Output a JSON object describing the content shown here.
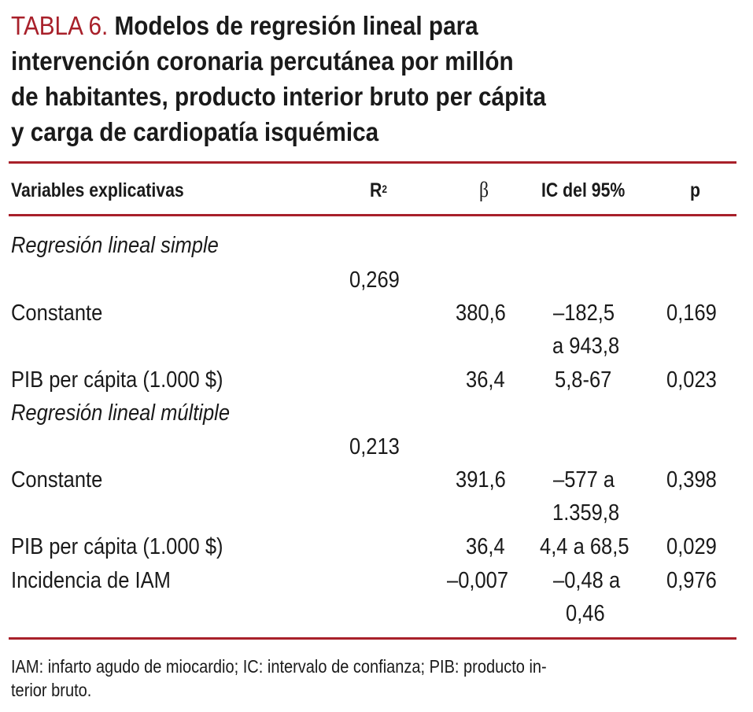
{
  "title": {
    "label": "TABLA 6.",
    "lines": [
      "Modelos de regresión lineal para",
      "intervención coronaria percutánea por millón",
      "de habitantes, producto interior bruto per cápita",
      "y carga de cardiopatía isquémica"
    ]
  },
  "table": {
    "headers": {
      "variables": "Variables explicativas",
      "r2_base": "R",
      "r2_sup": "2",
      "beta": "β",
      "ci": "IC del 95%",
      "p": "p"
    },
    "sections": [
      {
        "title": "Regresión lineal simple",
        "r2": "0,269",
        "rows": [
          {
            "variable": "Constante",
            "beta": "380,6",
            "ci_line1": "–182,5",
            "ci_line2": "a 943,8",
            "p": "0,169"
          },
          {
            "variable": "PIB per cápita (1.000 $)",
            "beta": "36,4",
            "ci_line1": "5,8-67",
            "p": "0,023"
          }
        ]
      },
      {
        "title": "Regresión lineal múltiple",
        "r2": "0,213",
        "rows": [
          {
            "variable": "Constante",
            "beta": "391,6",
            "ci_line1": "–577 a",
            "ci_line2": "1.359,8",
            "p": "0,398"
          },
          {
            "variable": "PIB per cápita (1.000 $)",
            "beta": "36,4",
            "ci_line1": "4,4 a 68,5",
            "p": "0,029"
          },
          {
            "variable": "Incidencia de IAM",
            "beta": "–0,007",
            "ci_line1": "–0,48 a",
            "ci_line2": "0,46",
            "p": "0,976"
          }
        ]
      }
    ]
  },
  "footnote": {
    "line1": "IAM: infarto agudo de miocardio; IC: intervalo de confianza; PIB: producto in-",
    "line2": "terior bruto."
  },
  "colors": {
    "accent": "#a8202a",
    "text": "#1a1a1a"
  }
}
